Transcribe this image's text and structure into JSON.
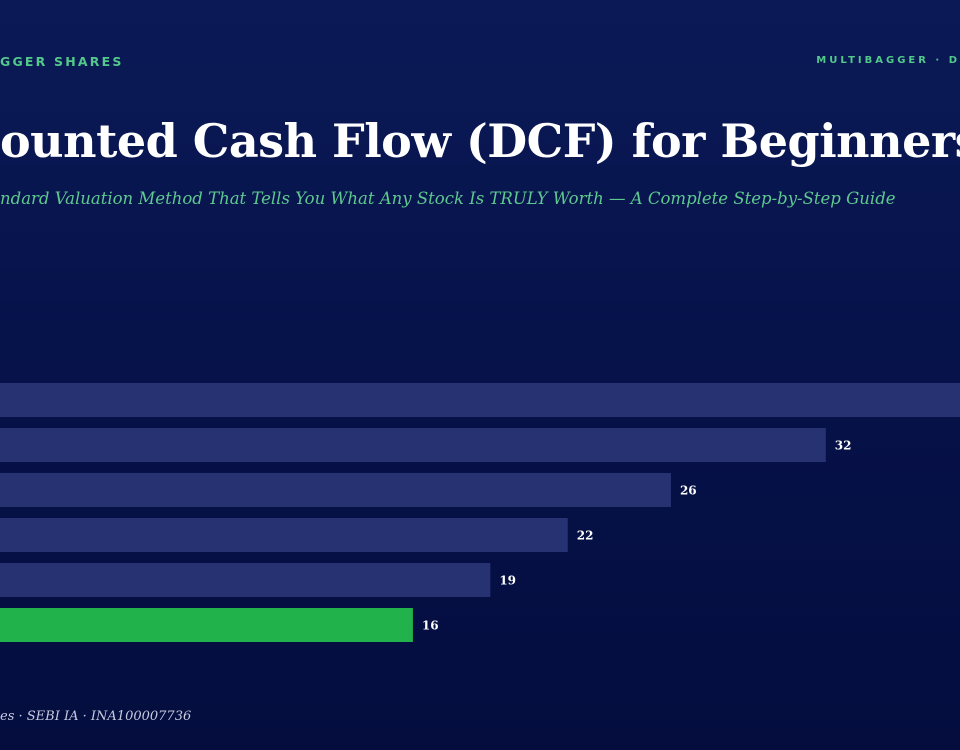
{
  "header": {
    "brand_left": "GGER SHARES",
    "brand_right": "MULTIBAGGER · D"
  },
  "title": "ounted Cash Flow (DCF) for Beginners",
  "subtitle": "ndard Valuation Method That Tells You What Any Stock Is TRULY Worth — A Complete Step-by-Step Guide",
  "footer": "es · SEBI IA · INA100007736",
  "colors": {
    "bar_default": "#273272",
    "bar_highlight": "#22b24c",
    "label": "#ffffff"
  },
  "chart_data": {
    "type": "bar",
    "orientation": "horizontal",
    "values": [
      38,
      32,
      26,
      22,
      19,
      16
    ],
    "labels": [
      "",
      "32",
      "26",
      "22",
      "19",
      "16"
    ],
    "highlight_index": 5,
    "xlim": [
      0,
      37.2
    ],
    "grid": false,
    "legend": "none"
  }
}
